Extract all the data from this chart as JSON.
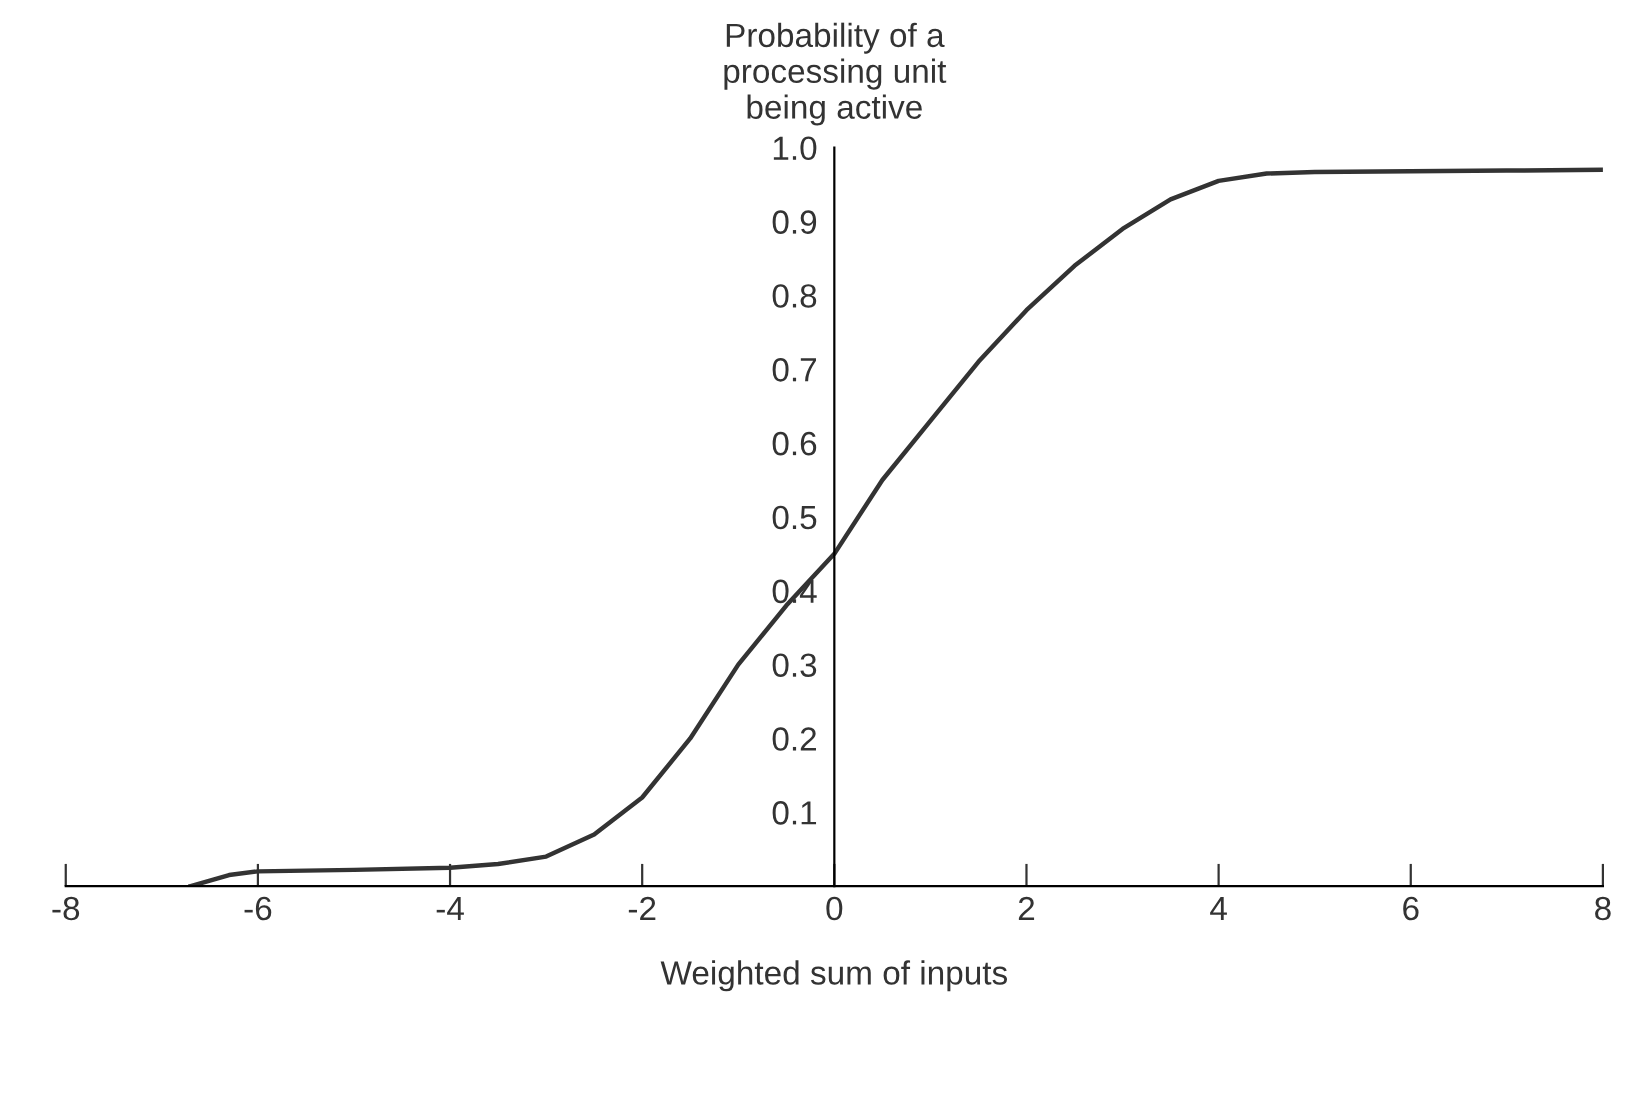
{
  "chart_data": {
    "type": "line",
    "xlabel": "Weighted sum of inputs",
    "ylabel": "Probability of a\nprocessing unit\nbeing active",
    "series": [
      {
        "color": "#333333",
        "x": [
          -6.7,
          -6.3,
          -6,
          -5,
          -4,
          -3.5,
          -3,
          -2.5,
          -2,
          -1.5,
          -1,
          -0.5,
          0,
          0.5,
          1,
          1.5,
          2,
          2.5,
          3,
          3.5,
          4,
          4.5,
          5,
          6,
          7,
          8
        ],
        "values": [
          0,
          0.015,
          0.02,
          0.022,
          0.025,
          0.03,
          0.04,
          0.07,
          0.12,
          0.2,
          0.3,
          0.38,
          0.45,
          0.55,
          0.63,
          0.71,
          0.78,
          0.84,
          0.89,
          0.93,
          0.955,
          0.965,
          0.967,
          0.968,
          0.969,
          0.97
        ]
      }
    ],
    "xlim": [
      -8,
      8
    ],
    "ylim": [
      0,
      1.0
    ],
    "xticks": [
      -8,
      -6,
      -4,
      -2,
      0,
      2,
      4,
      6,
      8
    ],
    "yticks": [
      0.1,
      0.2,
      0.3,
      0.4,
      0.5,
      0.6,
      0.7,
      0.8,
      0.9,
      {
        "value": 1.0,
        "label": "1.0"
      }
    ],
    "grid": false,
    "legend": false,
    "marker": "none",
    "line_style": "solid"
  }
}
